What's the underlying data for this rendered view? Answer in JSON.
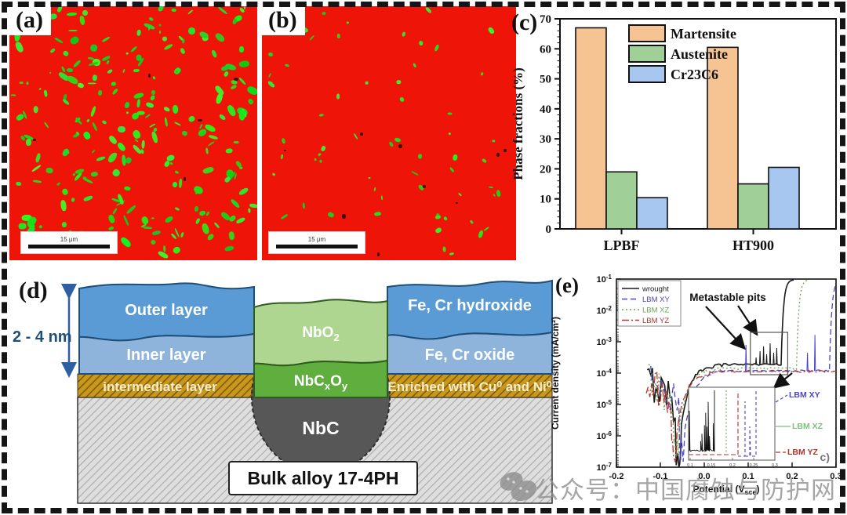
{
  "watermark": {
    "text": "公众号：中国腐蚀与防护网"
  },
  "panels": {
    "a": {
      "label": "(a)",
      "scale_bar": "15 μm"
    },
    "b": {
      "label": "(b)",
      "scale_bar": "15 μm"
    },
    "c": {
      "label": "(c)"
    },
    "d": {
      "label": "(d)",
      "dim_annotation": "2 - 4 nm",
      "outer_layer": "Outer layer",
      "inner_layer": "Inner layer",
      "hydroxide": "Fe, Cr hydroxide",
      "oxide": "Fe, Cr oxide",
      "nbo2_base": "NbO",
      "nbo2_sub": "2",
      "nbc_b1": "NbC",
      "nbc_s1": "x",
      "nbc_b2": "O",
      "nbc_s2": "y",
      "intermediate": "intermediate layer",
      "enriched": "Enriched with Cu⁰ and Ni⁰",
      "nbc_label": "NbC",
      "bulk_label": "Bulk alloy 17-4PH"
    },
    "e": {
      "label": "(e)"
    }
  },
  "phase_maps": {
    "a_speckles": 240,
    "a_dark": 6,
    "b_speckles": 62,
    "b_dark": 9
  },
  "chart_data": [
    {
      "type": "bar",
      "panel": "c",
      "categories": [
        "LPBF",
        "HT900"
      ],
      "series": [
        {
          "name": "Martensite",
          "color": "#F6C493",
          "values": [
            67,
            60.5
          ]
        },
        {
          "name": "Austenite",
          "color": "#A0D097",
          "values": [
            19,
            15
          ]
        },
        {
          "name": "Cr23C6",
          "color": "#A7C7F1",
          "values": [
            10.4,
            20.5
          ]
        }
      ],
      "ylabel": "Phase fractions (%)",
      "ylim": [
        0,
        70
      ],
      "ytick_step": 10,
      "ytick_minor_step": 2,
      "grid": false,
      "legend_position": "top-left-inside"
    },
    {
      "type": "line",
      "panel": "e",
      "xlabel_base": "Potential (V",
      "xlabel_sub": "sce",
      "xlabel_close": ")",
      "ylabel": "Current density (mA/cm²)",
      "xlim": [
        -0.2,
        0.3
      ],
      "xticks": [
        "-0.2",
        "-0.1",
        "0.0",
        "0.1",
        "0.2",
        "0.3"
      ],
      "y_log_exponents": [
        -1,
        -2,
        -3,
        -4,
        -5,
        -6,
        -7
      ],
      "annotation": "Metastable pits",
      "corner_label": "c)",
      "legend_position": "top-left-inside",
      "series": [
        {
          "name": "wrought",
          "color": "#1a1a1a",
          "style": "solid",
          "start": -0.13,
          "ecorr": -0.056,
          "passive_log": -3.72,
          "breakdown": 0.175,
          "spikes": [
            [
              0.118,
              -3.5
            ],
            [
              0.127,
              -3.3
            ],
            [
              0.135,
              -3.15
            ],
            [
              0.142,
              -3.4
            ],
            [
              0.15,
              -3.05
            ],
            [
              0.158,
              -3.35
            ],
            [
              0.165,
              -3.2
            ]
          ]
        },
        {
          "name": "LBM XY",
          "color": "#4a44cc",
          "style": "dashed",
          "start": -0.122,
          "ecorr": -0.048,
          "passive_log": -3.93,
          "breakdown": 0.285,
          "spikes": [
            [
              0.095,
              -3.1
            ],
            [
              0.235,
              -3.35
            ],
            [
              0.252,
              -2.78
            ]
          ]
        },
        {
          "name": "LBM XZ",
          "color": "#69a457",
          "style": "dotted",
          "start": -0.127,
          "ecorr": -0.061,
          "passive_log": -3.85,
          "breakdown": 0.21,
          "spikes": []
        },
        {
          "name": "LBM YZ",
          "color": "#b5322a",
          "style": "dashdot",
          "start": -0.132,
          "ecorr": -0.066,
          "passive_log": -3.95,
          "breakdown": null,
          "spikes": []
        }
      ],
      "inset": {
        "xticks": [
          "0.1",
          "0.15",
          "0.2",
          "0.25",
          "0.3"
        ],
        "labels": [
          {
            "text": "LBM XY",
            "color": "#4a44cc"
          },
          {
            "text": "LBM XZ",
            "color": "#7cc07c"
          },
          {
            "text": "LBM YZ",
            "color": "#b5322a"
          }
        ]
      }
    }
  ]
}
